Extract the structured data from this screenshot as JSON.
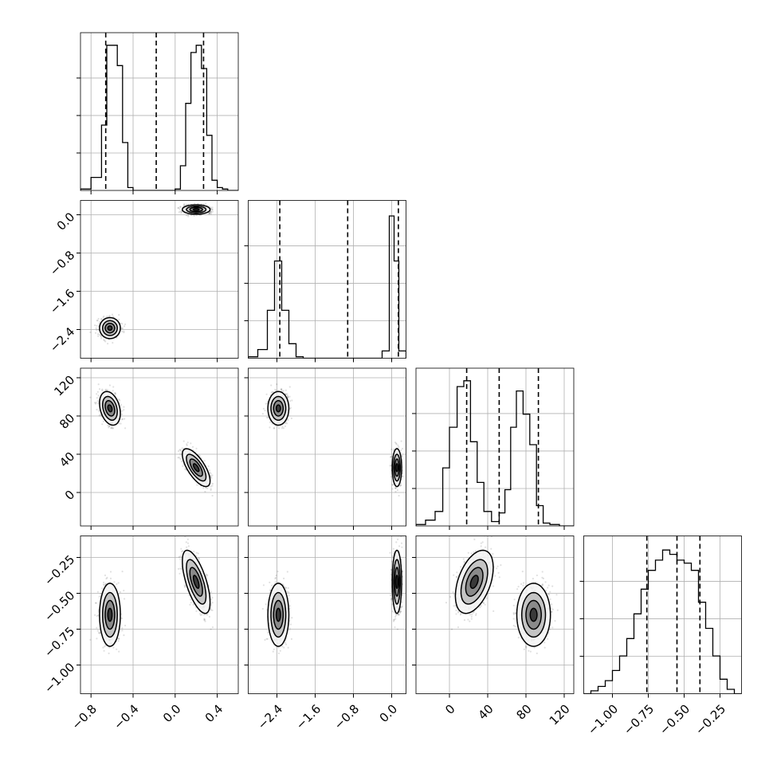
{
  "chart_data": {
    "type": "corner",
    "grid": true,
    "parameters": [
      {
        "range": [
          -0.9,
          0.6
        ],
        "ticks": [
          -0.8,
          -0.4,
          0.0,
          0.4
        ],
        "tick_labels": [
          "−0.8",
          "−0.4",
          "0.0",
          "0.4"
        ],
        "quantiles": [
          -0.66,
          -0.18,
          0.27
        ],
        "hist": {
          "edges": [
            -0.9,
            -0.8,
            -0.7,
            -0.65,
            -0.6,
            -0.55,
            -0.5,
            -0.45,
            -0.4,
            -0.35,
            -0.3,
            -0.25,
            -0.2,
            -0.15,
            -0.1,
            -0.05,
            0.0,
            0.05,
            0.1,
            0.15,
            0.2,
            0.25,
            0.3,
            0.35,
            0.4,
            0.45,
            0.5,
            0.6
          ],
          "counts": [
            0.01,
            0.09,
            0.45,
            1.0,
            1.0,
            0.86,
            0.33,
            0.02,
            0.0,
            0.0,
            0.0,
            0.0,
            0.0,
            0.0,
            0.0,
            0.0,
            0.01,
            0.17,
            0.6,
            0.95,
            1.0,
            0.84,
            0.38,
            0.07,
            0.02,
            0.01,
            0.0
          ]
        }
      },
      {
        "range": [
          -3.0,
          0.3
        ],
        "ticks": [
          -2.4,
          -1.6,
          -0.8,
          0.0
        ],
        "tick_labels": [
          "−2.4",
          "−1.6",
          "−0.8",
          "0.0"
        ],
        "quantiles": [
          -2.34,
          -0.92,
          0.14
        ],
        "hist": {
          "edges": [
            -3.0,
            -2.8,
            -2.6,
            -2.45,
            -2.3,
            -2.15,
            -2.0,
            -1.85,
            -1.7,
            -1.55,
            -1.4,
            -1.25,
            -1.1,
            -0.95,
            -0.8,
            -0.65,
            -0.5,
            -0.35,
            -0.2,
            -0.05,
            0.05,
            0.15,
            0.3
          ],
          "counts": [
            0.01,
            0.06,
            0.33,
            0.67,
            0.33,
            0.1,
            0.01,
            0.0,
            0.0,
            0.0,
            0.0,
            0.0,
            0.0,
            0.0,
            0.0,
            0.0,
            0.0,
            0.0,
            0.05,
            0.98,
            0.67,
            0.05
          ]
        }
      },
      {
        "range": [
          -35.0,
          130.0
        ],
        "ticks": [
          0,
          40,
          80,
          120
        ],
        "tick_labels": [
          "0",
          "40",
          "80",
          "120"
        ],
        "quantiles": [
          18.0,
          52.0,
          93.0
        ],
        "hist": {
          "edges": [
            -35,
            -25,
            -15,
            -7,
            0,
            8,
            15,
            22,
            29,
            36,
            44,
            52,
            58,
            64,
            70,
            77,
            84,
            91,
            98,
            105,
            115,
            130
          ],
          "counts": [
            0.01,
            0.04,
            0.1,
            0.4,
            0.68,
            0.96,
            1.0,
            0.58,
            0.3,
            0.1,
            0.03,
            0.09,
            0.25,
            0.68,
            0.93,
            0.77,
            0.56,
            0.14,
            0.02,
            0.01,
            0.0
          ]
        }
      },
      {
        "range": [
          -1.2,
          -0.1
        ],
        "ticks": [
          -1.0,
          -0.75,
          -0.5,
          -0.25
        ],
        "tick_labels": [
          "−1.00",
          "−0.75",
          "−0.50",
          "−0.25"
        ],
        "quantiles": [
          -0.76,
          -0.55,
          -0.39
        ],
        "hist": {
          "edges": [
            -1.2,
            -1.15,
            -1.1,
            -1.05,
            -1.0,
            -0.95,
            -0.9,
            -0.85,
            -0.8,
            -0.75,
            -0.7,
            -0.65,
            -0.6,
            -0.55,
            -0.5,
            -0.45,
            -0.4,
            -0.35,
            -0.3,
            -0.25,
            -0.2,
            -0.15,
            -0.1
          ],
          "counts": [
            0.0,
            0.02,
            0.05,
            0.09,
            0.16,
            0.26,
            0.38,
            0.55,
            0.72,
            0.85,
            0.92,
            0.99,
            0.96,
            0.92,
            0.9,
            0.85,
            0.63,
            0.45,
            0.26,
            0.1,
            0.03,
            0.0
          ]
        }
      }
    ],
    "modes": [
      {
        "mean": [
          -0.62,
          -2.37,
          88.0,
          -0.65
        ],
        "sd": [
          0.045,
          0.1,
          8.0,
          0.1
        ],
        "corr": [
          [
            1.0,
            0.0,
            -0.3,
            0.0
          ],
          [
            0.0,
            1.0,
            0.0,
            0.0
          ],
          [
            -0.3,
            0.0,
            1.0,
            0.0
          ],
          [
            0.0,
            0.0,
            0.0,
            1.0
          ]
        ]
      },
      {
        "mean": [
          0.2,
          0.11,
          26.0,
          -0.42
        ],
        "sd": [
          0.06,
          0.045,
          9.0,
          0.1
        ],
        "corr": [
          [
            1.0,
            0.0,
            -0.7,
            -0.65
          ],
          [
            0.0,
            1.0,
            0.0,
            0.0
          ],
          [
            -0.7,
            0.0,
            1.0,
            0.45
          ],
          [
            -0.65,
            0.0,
            0.45,
            1.0
          ]
        ]
      }
    ],
    "samples_per_mode": 1500,
    "colors": {
      "points": "#000000",
      "levels": [
        "#f4f4f4",
        "#c4c4c4",
        "#8a8a8a",
        "#3a3a3a"
      ],
      "grid": "#b0b0b0"
    }
  }
}
